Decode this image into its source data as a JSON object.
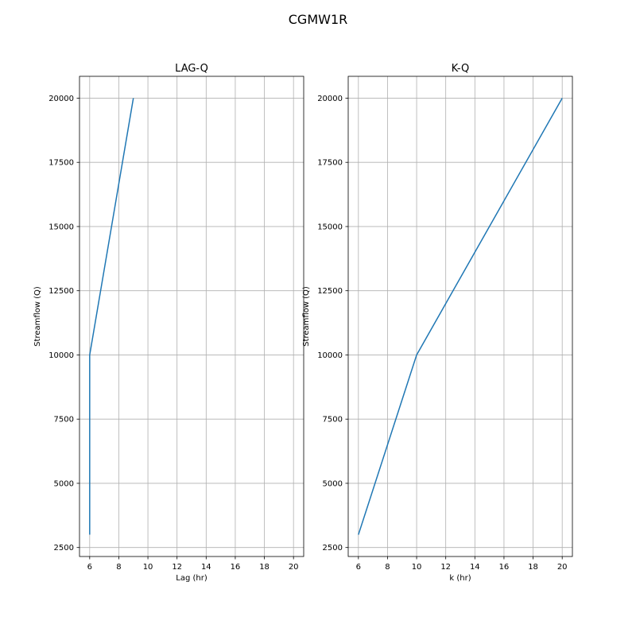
{
  "figure": {
    "suptitle": "CGMW1R"
  },
  "chart_data": [
    {
      "type": "line",
      "title": "LAG-Q",
      "xlabel": "Lag (hr)",
      "ylabel": "Streamflow (Q)",
      "xlim": [
        5.3,
        20.7
      ],
      "ylim": [
        2150,
        20850
      ],
      "xticks": [
        6,
        8,
        10,
        12,
        14,
        16,
        18,
        20
      ],
      "yticks": [
        2500,
        5000,
        7500,
        10000,
        12500,
        15000,
        17500,
        20000
      ],
      "grid": true,
      "series": [
        {
          "x": [
            6,
            6,
            9
          ],
          "y": [
            3000,
            10000,
            20000
          ],
          "color": "#1f77b4"
        }
      ]
    },
    {
      "type": "line",
      "title": "K-Q",
      "xlabel": "k (hr)",
      "ylabel": "Streamflow (Q)",
      "xlim": [
        5.3,
        20.7
      ],
      "ylim": [
        2150,
        20850
      ],
      "xticks": [
        6,
        8,
        10,
        12,
        14,
        16,
        18,
        20
      ],
      "yticks": [
        2500,
        5000,
        7500,
        10000,
        12500,
        15000,
        17500,
        20000
      ],
      "grid": true,
      "series": [
        {
          "x": [
            6,
            10,
            20
          ],
          "y": [
            3000,
            10000,
            20000
          ],
          "color": "#1f77b4"
        }
      ]
    }
  ]
}
